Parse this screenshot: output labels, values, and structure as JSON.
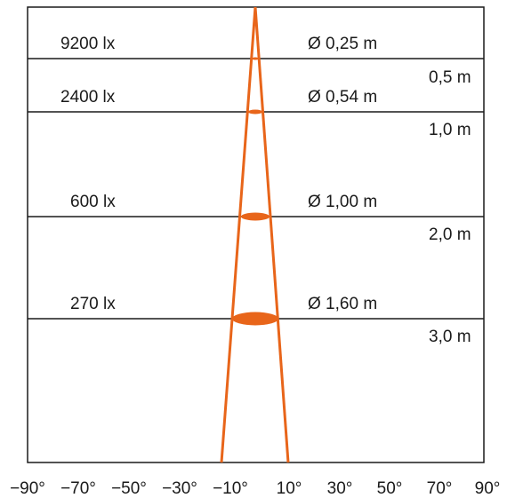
{
  "colors": {
    "beam": "#e8651a",
    "line": "#1a1a1a",
    "background": "#ffffff"
  },
  "x_axis": {
    "ticks": [
      "−90°",
      "−70°",
      "−50°",
      "−30°",
      "−10°",
      "10°",
      "30°",
      "50°",
      "70°",
      "90°"
    ]
  },
  "levels": [
    {
      "lux": "9200 lx",
      "diameter": "Ø 0,25 m",
      "distance": "0,5 m"
    },
    {
      "lux": "2400 lx",
      "diameter": "Ø 0,54 m",
      "distance": "1,0 m"
    },
    {
      "lux": "600 lx",
      "diameter": "Ø 1,00 m",
      "distance": "2,0 m"
    },
    {
      "lux": "270 lx",
      "diameter": "Ø 1,60 m",
      "distance": "3,0 m"
    }
  ]
}
